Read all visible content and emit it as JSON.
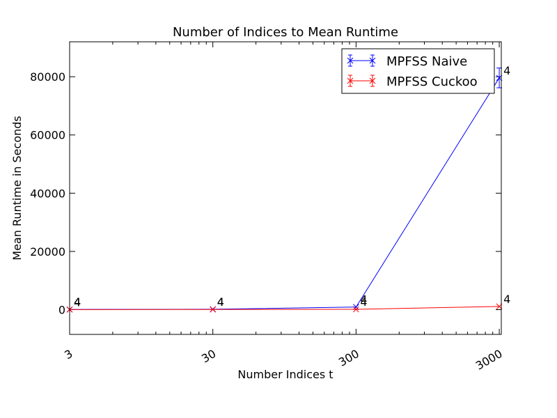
{
  "chart_data": {
    "type": "line",
    "title": "Number of Indices to Mean Runtime",
    "xlabel": "Number Indices t",
    "ylabel": "Mean Runtime in Seconds",
    "xscale": "log",
    "xlim": [
      3,
      3100
    ],
    "ylim": [
      -8500,
      92000
    ],
    "grid": false,
    "legend_position": "top-right",
    "x_ticks": [
      {
        "value": 3,
        "label": "3"
      },
      {
        "value": 30,
        "label": "30"
      },
      {
        "value": 300,
        "label": "300"
      },
      {
        "value": 3000,
        "label": "3000"
      }
    ],
    "y_ticks": [
      {
        "value": 0,
        "label": "0"
      },
      {
        "value": 20000,
        "label": "20000"
      },
      {
        "value": 40000,
        "label": "40000"
      },
      {
        "value": 60000,
        "label": "60000"
      },
      {
        "value": 80000,
        "label": "80000"
      }
    ],
    "series": [
      {
        "name": "MPFSS Naive",
        "color": "#0000ff",
        "points": [
          {
            "x": 3,
            "y": 60,
            "err": 0,
            "label": "4"
          },
          {
            "x": 30,
            "y": 150,
            "err": 0,
            "label": "4"
          },
          {
            "x": 300,
            "y": 900,
            "err": 0,
            "label": "4"
          },
          {
            "x": 3000,
            "y": 79600,
            "err": 3400,
            "label": "4"
          }
        ]
      },
      {
        "name": "MPFSS Cuckoo",
        "color": "#ff0000",
        "points": [
          {
            "x": 3,
            "y": 30,
            "err": 0,
            "label": "4"
          },
          {
            "x": 30,
            "y": 60,
            "err": 0,
            "label": "4"
          },
          {
            "x": 300,
            "y": 100,
            "err": 0,
            "label": "4"
          },
          {
            "x": 3000,
            "y": 1100,
            "err": 0,
            "label": "4"
          }
        ]
      }
    ]
  }
}
